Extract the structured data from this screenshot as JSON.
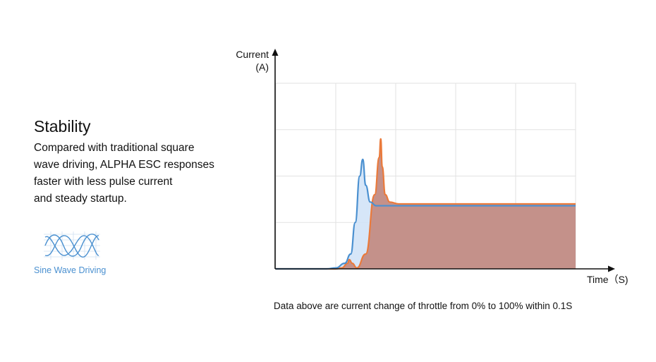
{
  "panel": {
    "title": "Stability",
    "description_lines": [
      "Compared with traditional square",
      "wave driving, ALPHA ESC responses",
      "faster with less pulse current",
      "and steady startup."
    ]
  },
  "legend_badge": {
    "label": "Sine Wave Driving",
    "icon": "sine-wave-icon",
    "color": "#4a90d0"
  },
  "caption": "Data above are current change of throttle from 0% to 100% within 0.1S",
  "chart_data": {
    "type": "area",
    "ylabel_line1": "Current",
    "ylabel_line2": "(A)",
    "xlabel": "Time（S)",
    "xlim": [
      0,
      1
    ],
    "ylim": [
      0,
      1
    ],
    "grid": true,
    "series": [
      {
        "color": "#ea7a3b",
        "fill": "#c4918a",
        "x": [
          0,
          0.2,
          0.22,
          0.24,
          0.245,
          0.255,
          0.27,
          0.3,
          0.33,
          0.345,
          0.35,
          0.355,
          0.365,
          0.38,
          0.41,
          1.0
        ],
        "y": [
          0.0,
          0.0,
          0.005,
          0.03,
          0.05,
          0.03,
          0.005,
          0.08,
          0.4,
          0.6,
          0.7,
          0.55,
          0.4,
          0.36,
          0.35,
          0.35
        ]
      },
      {
        "color": "#4a90d0",
        "fill": "#cfe2f7",
        "x": [
          0,
          0.17,
          0.2,
          0.23,
          0.25,
          0.265,
          0.28,
          0.29,
          0.3,
          0.315,
          0.335,
          0.36,
          1.0
        ],
        "y": [
          0.0,
          0.0,
          0.005,
          0.03,
          0.08,
          0.25,
          0.5,
          0.59,
          0.45,
          0.36,
          0.34,
          0.34,
          0.34
        ]
      }
    ]
  }
}
